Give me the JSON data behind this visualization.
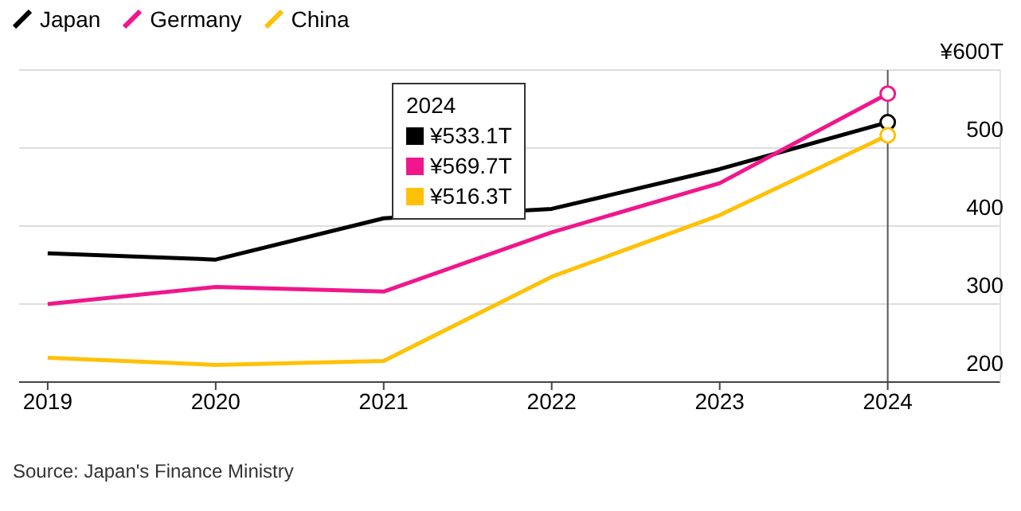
{
  "chart_data": {
    "type": "line",
    "x": [
      2019,
      2020,
      2021,
      2022,
      2023,
      2024
    ],
    "series": [
      {
        "name": "Japan",
        "color": "#000000",
        "values": [
          365,
          357,
          410,
          422,
          473,
          533.1
        ]
      },
      {
        "name": "Germany",
        "color": "#f0168c",
        "values": [
          300,
          322,
          316,
          392,
          455,
          569.7
        ]
      },
      {
        "name": "China",
        "color": "#ffc107",
        "values": [
          231,
          222,
          227,
          335,
          414,
          516.3
        ]
      }
    ],
    "xlim": [
      2018.83,
      2024.67
    ],
    "xticks": [
      2019,
      2020,
      2021,
      2022,
      2023,
      2024
    ],
    "ylim": [
      200,
      600
    ],
    "yticks": [
      200,
      300,
      400,
      500,
      {
        "value": 600,
        "label": "¥600T"
      }
    ],
    "grid": "y",
    "legend": "top left",
    "line_style": "solid",
    "ref_lines": [
      {
        "axis": "x",
        "value": 2024,
        "color": "#555555"
      }
    ],
    "annotations": [
      "Source: Japan's Finance Ministry",
      "2024",
      "¥533.1T",
      "¥569.7T",
      "¥516.3T"
    ]
  }
}
